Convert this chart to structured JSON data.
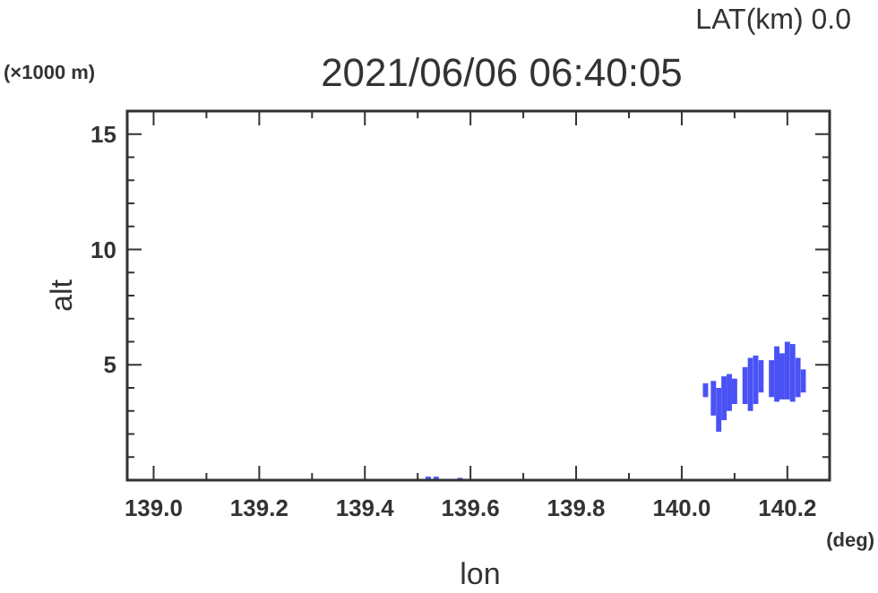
{
  "chart_data": {
    "type": "bar",
    "title": "2021/06/06 06:40:05",
    "xlabel": "lon",
    "ylabel": "alt",
    "annotations": [
      "LAT(km) 0.0",
      "(×1000 m)",
      "(deg)"
    ],
    "color": "#4a52f5",
    "x": [
      139.52,
      139.535,
      139.58,
      140.045,
      140.06,
      140.07,
      140.08,
      140.09,
      140.1,
      140.12,
      140.13,
      140.14,
      140.15,
      140.17,
      140.18,
      140.19,
      140.2,
      140.21,
      140.22,
      140.23
    ],
    "base": [
      0,
      0,
      0,
      3.6,
      2.8,
      2.1,
      2.6,
      3.0,
      3.3,
      3.3,
      3.0,
      3.3,
      3.8,
      3.6,
      3.4,
      3.5,
      3.5,
      3.4,
      3.6,
      3.8
    ],
    "values": [
      0.15,
      0.15,
      0.1,
      0.6,
      1.5,
      1.9,
      1.9,
      1.6,
      1.1,
      1.6,
      2.3,
      2.1,
      1.4,
      1.6,
      2.4,
      2.0,
      2.5,
      2.5,
      1.7,
      1.0
    ],
    "xlim": [
      138.95,
      140.28
    ],
    "ylim": [
      0,
      16
    ],
    "xticks": [
      {
        "value": 139.0,
        "label": "139.0"
      },
      {
        "value": 139.1,
        "label": null
      },
      {
        "value": 139.2,
        "label": "139.2"
      },
      {
        "value": 139.3,
        "label": null
      },
      {
        "value": 139.4,
        "label": "139.4"
      },
      {
        "value": 139.5,
        "label": null
      },
      {
        "value": 139.6,
        "label": "139.6"
      },
      {
        "value": 139.7,
        "label": null
      },
      {
        "value": 139.8,
        "label": "139.8"
      },
      {
        "value": 139.9,
        "label": null
      },
      {
        "value": 140.0,
        "label": "140.0"
      },
      {
        "value": 140.1,
        "label": null
      },
      {
        "value": 140.2,
        "label": "140.2"
      }
    ],
    "yticks": [
      {
        "value": 1,
        "label": null
      },
      {
        "value": 2,
        "label": null
      },
      {
        "value": 3,
        "label": null
      },
      {
        "value": 4,
        "label": null
      },
      5,
      {
        "value": 6,
        "label": null
      },
      {
        "value": 7,
        "label": null
      },
      {
        "value": 8,
        "label": null
      },
      {
        "value": 9,
        "label": null
      },
      10,
      {
        "value": 11,
        "label": null
      },
      {
        "value": 12,
        "label": null
      },
      {
        "value": 13,
        "label": null
      },
      {
        "value": 14,
        "label": null
      },
      15
    ],
    "grid": false
  }
}
